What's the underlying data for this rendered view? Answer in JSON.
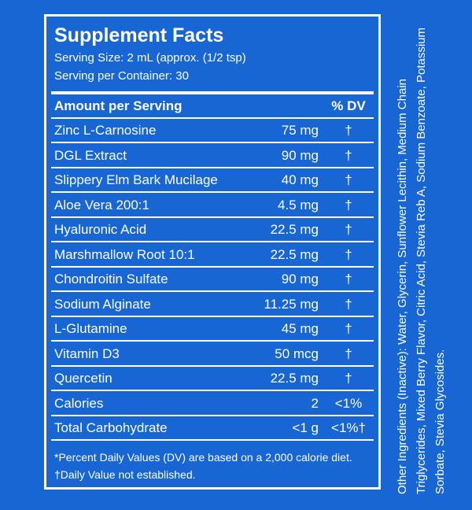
{
  "title": "Supplement Facts",
  "serving_size": "Serving Size: 2 mL (approx. (1/2 tsp)",
  "servings": "Serving per Container: 30",
  "header": {
    "amount": "Amount per Serving",
    "dv": "% DV"
  },
  "rows": [
    {
      "name": "Zinc L-Carnosine",
      "amount": "75 mg",
      "dv": "†"
    },
    {
      "name": "DGL Extract",
      "amount": "90 mg",
      "dv": "†"
    },
    {
      "name": "Slippery Elm Bark Mucilage",
      "amount": "40 mg",
      "dv": "†"
    },
    {
      "name": "Aloe Vera 200:1",
      "amount": "4.5 mg",
      "dv": "†"
    },
    {
      "name": "Hyaluronic Acid",
      "amount": "22.5 mg",
      "dv": "†"
    },
    {
      "name": "Marshmallow Root 10:1",
      "amount": "22.5 mg",
      "dv": "†"
    },
    {
      "name": "Chondroitin Sulfate",
      "amount": "90 mg",
      "dv": "†"
    },
    {
      "name": "Sodium Alginate",
      "amount": "11.25 mg",
      "dv": "†"
    },
    {
      "name": "L-Glutamine",
      "amount": "45 mg",
      "dv": "†"
    },
    {
      "name": "Vitamin D3",
      "amount": "50 mcg",
      "dv": "†"
    },
    {
      "name": "Quercetin",
      "amount": "22.5 mg",
      "dv": "†"
    },
    {
      "name": "Calories",
      "amount": "2",
      "dv": "<1%"
    },
    {
      "name": "Total Carbohydrate",
      "amount": "<1 g",
      "dv": "<1%†"
    }
  ],
  "footnotes": [
    "*Percent Daily Values (DV) are based  on a 2,000 calorie diet.",
    "†Daily Value not established."
  ],
  "other_ingredients": "Other Ingredients (Inactive): Water, Glycerin, Sunflower Lecithin, Medium Chain Triglycerides, Mixed Berry Flavor, Citric Acid, Stevia Reb A, Sodium Benzoate, Potassium Sorbate, Stevia Glycosides."
}
